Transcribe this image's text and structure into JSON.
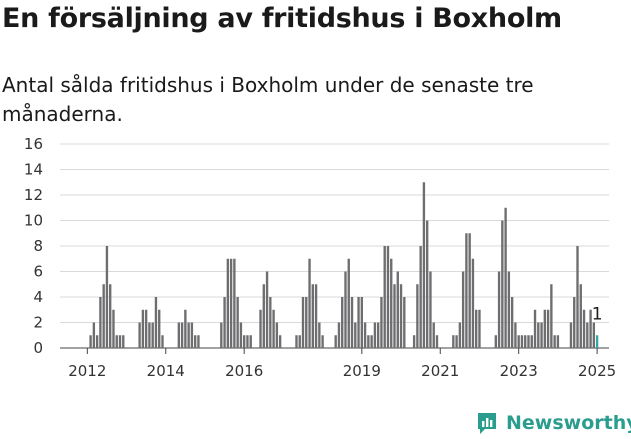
{
  "title": "En försäljning av fritidshus i Boxholm",
  "subtitle": "Antal sålda fritidshus i Boxholm under de senaste tre månaderna.",
  "brand": {
    "name": "Newsworthy",
    "icon": "newsworthy-logo-icon",
    "color": "#2a9d8f"
  },
  "chart_data": {
    "type": "bar",
    "ylim": [
      0,
      16
    ],
    "yticks": [
      0,
      2,
      4,
      6,
      8,
      10,
      12,
      14,
      16
    ],
    "grid": true,
    "xticks": [
      {
        "label": "2012",
        "x": "2012-01"
      },
      {
        "label": "2014",
        "x": "2014-01"
      },
      {
        "label": "2016",
        "x": "2016-01"
      },
      {
        "label": "2019",
        "x": "2019-01"
      },
      {
        "label": "2021",
        "x": "2021-01"
      },
      {
        "label": "2023",
        "x": "2023-01"
      },
      {
        "label": "2025",
        "x": "2025-01"
      }
    ],
    "x_range": [
      "2011-05",
      "2025-04"
    ],
    "colors": {
      "bar": "#6e6d70",
      "highlight": "#36a6a6"
    },
    "annotation": {
      "x": "2025-01",
      "text": "1"
    },
    "x": [
      "2011-05",
      "2011-06",
      "2011-07",
      "2011-08",
      "2011-09",
      "2011-10",
      "2011-11",
      "2011-12",
      "2012-01",
      "2012-02",
      "2012-03",
      "2012-04",
      "2012-05",
      "2012-06",
      "2012-07",
      "2012-08",
      "2012-09",
      "2012-10",
      "2012-11",
      "2012-12",
      "2013-01",
      "2013-02",
      "2013-03",
      "2013-04",
      "2013-05",
      "2013-06",
      "2013-07",
      "2013-08",
      "2013-09",
      "2013-10",
      "2013-11",
      "2013-12",
      "2014-01",
      "2014-02",
      "2014-03",
      "2014-04",
      "2014-05",
      "2014-06",
      "2014-07",
      "2014-08",
      "2014-09",
      "2014-10",
      "2014-11",
      "2014-12",
      "2015-01",
      "2015-02",
      "2015-03",
      "2015-04",
      "2015-05",
      "2015-06",
      "2015-07",
      "2015-08",
      "2015-09",
      "2015-10",
      "2015-11",
      "2015-12",
      "2016-01",
      "2016-02",
      "2016-03",
      "2016-04",
      "2016-05",
      "2016-06",
      "2016-07",
      "2016-08",
      "2016-09",
      "2016-10",
      "2016-11",
      "2016-12",
      "2017-01",
      "2017-02",
      "2017-03",
      "2017-04",
      "2017-05",
      "2017-06",
      "2017-07",
      "2017-08",
      "2017-09",
      "2017-10",
      "2017-11",
      "2017-12",
      "2018-01",
      "2018-02",
      "2018-03",
      "2018-04",
      "2018-05",
      "2018-06",
      "2018-07",
      "2018-08",
      "2018-09",
      "2018-10",
      "2018-11",
      "2018-12",
      "2019-01",
      "2019-02",
      "2019-03",
      "2019-04",
      "2019-05",
      "2019-06",
      "2019-07",
      "2019-08",
      "2019-09",
      "2019-10",
      "2019-11",
      "2019-12",
      "2020-01",
      "2020-02",
      "2020-03",
      "2020-04",
      "2020-05",
      "2020-06",
      "2020-07",
      "2020-08",
      "2020-09",
      "2020-10",
      "2020-11",
      "2020-12",
      "2021-01",
      "2021-02",
      "2021-03",
      "2021-04",
      "2021-05",
      "2021-06",
      "2021-07",
      "2021-08",
      "2021-09",
      "2021-10",
      "2021-11",
      "2021-12",
      "2022-01",
      "2022-02",
      "2022-03",
      "2022-04",
      "2022-05",
      "2022-06",
      "2022-07",
      "2022-08",
      "2022-09",
      "2022-10",
      "2022-11",
      "2022-12",
      "2023-01",
      "2023-02",
      "2023-03",
      "2023-04",
      "2023-05",
      "2023-06",
      "2023-07",
      "2023-08",
      "2023-09",
      "2023-10",
      "2023-11",
      "2023-12",
      "2024-01",
      "2024-02",
      "2024-03",
      "2024-04",
      "2024-05",
      "2024-06",
      "2024-07",
      "2024-08",
      "2024-09",
      "2024-10",
      "2024-11",
      "2024-12",
      "2025-01"
    ],
    "values": [
      0,
      0,
      0,
      0,
      0,
      0,
      0,
      0,
      0,
      1,
      2,
      1,
      4,
      5,
      8,
      5,
      3,
      1,
      1,
      1,
      0,
      0,
      0,
      0,
      2,
      3,
      3,
      2,
      2,
      4,
      3,
      1,
      0,
      0,
      0,
      0,
      2,
      2,
      3,
      2,
      2,
      1,
      1,
      0,
      0,
      0,
      0,
      0,
      0,
      2,
      4,
      7,
      7,
      7,
      4,
      2,
      1,
      1,
      1,
      0,
      0,
      3,
      5,
      6,
      4,
      3,
      2,
      1,
      0,
      0,
      0,
      0,
      1,
      1,
      4,
      4,
      7,
      5,
      5,
      2,
      1,
      0,
      0,
      0,
      1,
      2,
      4,
      6,
      7,
      4,
      2,
      4,
      4,
      2,
      1,
      1,
      2,
      2,
      4,
      8,
      8,
      7,
      5,
      6,
      5,
      4,
      0,
      0,
      1,
      5,
      8,
      13,
      10,
      6,
      2,
      1,
      0,
      0,
      0,
      0,
      1,
      1,
      2,
      6,
      9,
      9,
      7,
      3,
      3,
      0,
      0,
      0,
      0,
      1,
      6,
      10,
      11,
      6,
      4,
      2,
      1,
      1,
      1,
      1,
      1,
      3,
      2,
      2,
      3,
      3,
      5,
      1,
      1,
      0,
      0,
      0,
      2,
      4,
      8,
      5,
      3,
      2,
      3,
      2,
      1
    ]
  }
}
